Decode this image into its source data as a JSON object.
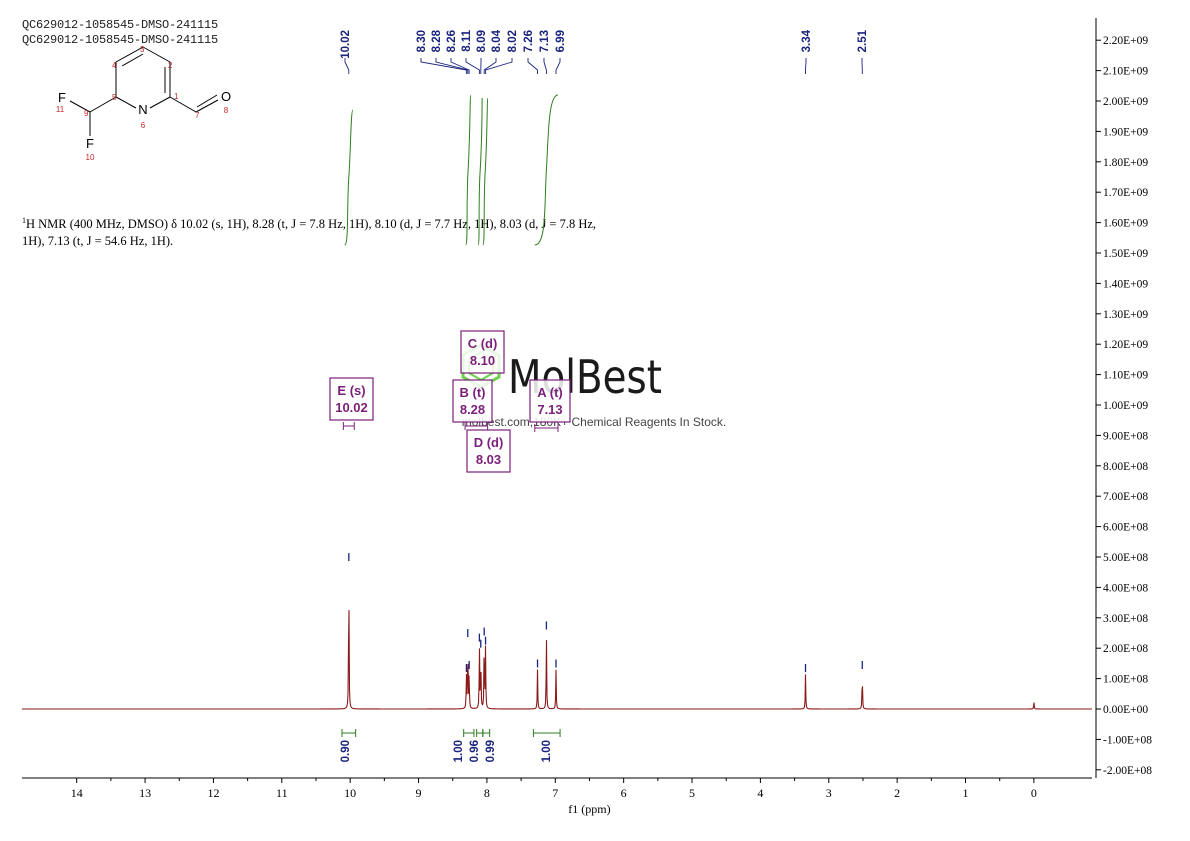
{
  "sample_lines": [
    "QC629012-1058545-DMSO-241115",
    "QC629012-1058545-DMSO-241115"
  ],
  "summary": {
    "sup": "1",
    "text": "H NMR (400 MHz, DMSO) δ 10.02 (s, 1H), 8.28 (t, J = 7.8 Hz, 1H), 8.10 (d, J = 7.7 Hz, 1H), 8.03 (d, J = 7.8 Hz, 1H), 7.13 (t, J = 54.6 Hz, 1H)."
  },
  "watermark": {
    "brand": "MolBest",
    "tagline": "molbest.com,180K+ Chemical Reagents In Stock.",
    "color": "#1a1a1a",
    "logo_color": "#6cd24a"
  },
  "structure": {
    "atoms": [
      {
        "label": "N",
        "num": "6"
      },
      {
        "label": "O",
        "num": "8"
      },
      {
        "label": "F",
        "num": "11"
      },
      {
        "label": "F",
        "num": "10"
      }
    ],
    "carbon_numbers": [
      "1",
      "2",
      "3",
      "4",
      "5",
      "7",
      "9"
    ]
  },
  "chart_data": {
    "type": "line",
    "xlabel": "f1 (ppm)",
    "xlim": [
      14.8,
      -0.85
    ],
    "xticks": [
      14,
      13,
      12,
      11,
      10,
      9,
      8,
      7,
      6,
      5,
      4,
      3,
      2,
      1,
      0
    ],
    "ylim": [
      -200000000,
      2250000000
    ],
    "yticks": [
      "2.20E+09",
      "2.10E+09",
      "2.00E+09",
      "1.90E+09",
      "1.80E+09",
      "1.70E+09",
      "1.60E+09",
      "1.50E+09",
      "1.40E+09",
      "1.30E+09",
      "1.20E+09",
      "1.10E+09",
      "1.00E+09",
      "9.00E+08",
      "8.00E+08",
      "7.00E+08",
      "6.00E+08",
      "5.00E+08",
      "4.00E+08",
      "3.00E+08",
      "2.00E+08",
      "1.00E+08",
      "0.00E+00",
      "-1.00E+08",
      "-2.00E+08"
    ],
    "ytick_values": [
      2200000000,
      2100000000,
      2000000000,
      1900000000,
      1800000000,
      1700000000,
      1600000000,
      1500000000,
      1400000000,
      1300000000,
      1200000000,
      1100000000,
      1000000000,
      900000000,
      800000000,
      700000000,
      600000000,
      500000000,
      400000000,
      300000000,
      200000000,
      100000000,
      0,
      -100000000,
      -200000000
    ],
    "peaks": [
      {
        "ppm": 10.02,
        "height": 480000000,
        "label": "10.02"
      },
      {
        "ppm": 8.3,
        "height": 115000000,
        "label": "8.30"
      },
      {
        "ppm": 8.28,
        "height": 230000000,
        "label": "8.28"
      },
      {
        "ppm": 8.26,
        "height": 125000000,
        "label": "8.26"
      },
      {
        "ppm": 8.11,
        "height": 215000000,
        "label": "8.11"
      },
      {
        "ppm": 8.09,
        "height": 195000000,
        "label": "8.09"
      },
      {
        "ppm": 8.04,
        "height": 235000000,
        "label": "8.04"
      },
      {
        "ppm": 8.02,
        "height": 205000000,
        "label": "8.02"
      },
      {
        "ppm": 7.26,
        "height": 130000000,
        "label": "7.26"
      },
      {
        "ppm": 7.13,
        "height": 255000000,
        "label": "7.13"
      },
      {
        "ppm": 6.99,
        "height": 130000000,
        "label": "6.99"
      },
      {
        "ppm": 3.34,
        "height": 115000000,
        "label": "3.34"
      },
      {
        "ppm": 2.51,
        "height": 125000000,
        "label": "2.51"
      },
      {
        "ppm": 0.0,
        "height": 25000000,
        "label": ""
      }
    ],
    "integrals": [
      {
        "from": 10.12,
        "to": 9.92,
        "value": "0.90"
      },
      {
        "from": 8.34,
        "to": 8.19,
        "value": "1.00"
      },
      {
        "from": 8.15,
        "to": 8.06,
        "value": "0.96"
      },
      {
        "from": 8.06,
        "to": 7.96,
        "value": "0.99"
      },
      {
        "from": 7.32,
        "to": 6.93,
        "value": "1.00"
      }
    ],
    "multiplets": [
      {
        "name": "E (s)",
        "shift": "10.02"
      },
      {
        "name": "C (d)",
        "shift": "8.10"
      },
      {
        "name": "B (t)",
        "shift": "8.28"
      },
      {
        "name": "A (t)",
        "shift": "7.13"
      },
      {
        "name": "D (d)",
        "shift": "8.03"
      }
    ],
    "colors": {
      "spectrum": "#8b1a1a",
      "integral": "#2e7d1e",
      "peak_label": "#1a237e",
      "multiplet": "#7b1f7a"
    }
  }
}
